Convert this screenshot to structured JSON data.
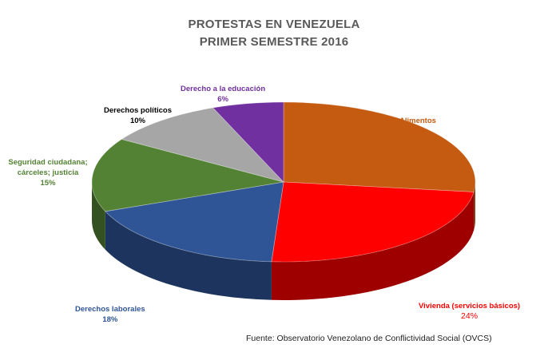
{
  "chart_data": {
    "type": "pie",
    "title_line1": "PROTESTAS EN VENEZUELA",
    "title_line2": "PRIMER SEMESTRE 2016",
    "slices": [
      {
        "label": "Alimentos",
        "value": 27,
        "pct_label": "27%",
        "color": "#c55a11"
      },
      {
        "label": "Vivienda (servicios básicos)",
        "value": 24,
        "pct_label": "24%",
        "color": "#ff0000"
      },
      {
        "label": "Derechos laborales",
        "value": 18,
        "pct_label": "18%",
        "color": "#2f5597"
      },
      {
        "label": "Seguridad ciudadana; cárceles;  justicia",
        "value": 15,
        "pct_label": "15%",
        "color": "#548235"
      },
      {
        "label": "Derechos políticos",
        "value": 10,
        "pct_label": "10%",
        "color": "#a6a6a6"
      },
      {
        "label": "Derecho a la educación",
        "value": 6,
        "pct_label": "6%",
        "color": "#7030a0"
      }
    ],
    "label_colors": [
      "#c55a11",
      "#ff0000",
      "#2f5597",
      "#548235",
      "#000000",
      "#7030a0"
    ],
    "source": "Fuente: Observatorio Venezolano de Conflictividad Social (OVCS)"
  }
}
